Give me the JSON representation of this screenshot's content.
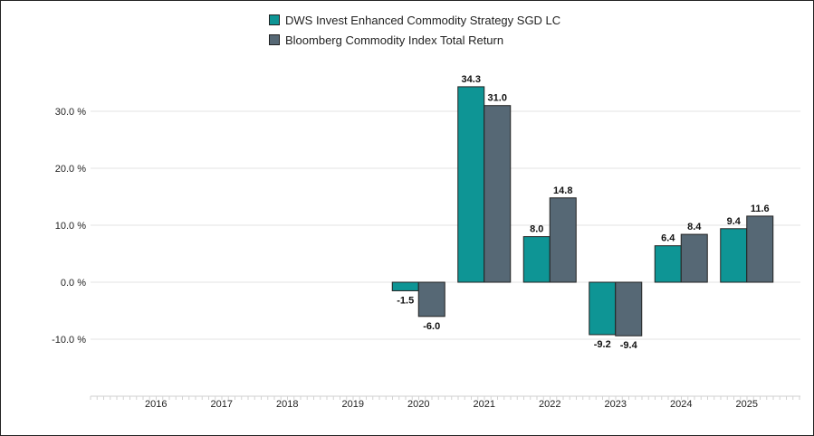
{
  "chart_data": {
    "type": "bar",
    "title": "",
    "xlabel": "",
    "ylabel": "",
    "categories": [
      "2016",
      "2017",
      "2018",
      "2019",
      "2020",
      "2021",
      "2022",
      "2023",
      "2024",
      "2025"
    ],
    "series": [
      {
        "name": "DWS Invest Enhanced Commodity Strategy SGD LC",
        "color": "#0e9595",
        "values": [
          null,
          null,
          null,
          null,
          -1.5,
          34.3,
          8.0,
          -9.2,
          6.4,
          9.4
        ],
        "labels": [
          "",
          "",
          "",
          "",
          "-1.5",
          "34.3",
          "8.0",
          "-9.2",
          "6.4",
          "9.4"
        ]
      },
      {
        "name": "Bloomberg Commodity Index Total Return",
        "color": "#566875",
        "values": [
          null,
          null,
          null,
          null,
          -6.0,
          31.0,
          14.8,
          -9.4,
          8.4,
          11.6
        ],
        "labels": [
          "",
          "",
          "",
          "",
          "-6.0",
          "31.0",
          "14.8",
          "-9.4",
          "8.4",
          "11.6"
        ]
      }
    ],
    "yticks": [
      30,
      20,
      10,
      0,
      -10
    ],
    "ytick_labels": [
      "30.0 %",
      "20.0 %",
      "10.0 %",
      "0.0 %",
      "-10.0 %"
    ],
    "ylim": [
      -20,
      40
    ],
    "grid": true,
    "legend_position": "top-center"
  }
}
